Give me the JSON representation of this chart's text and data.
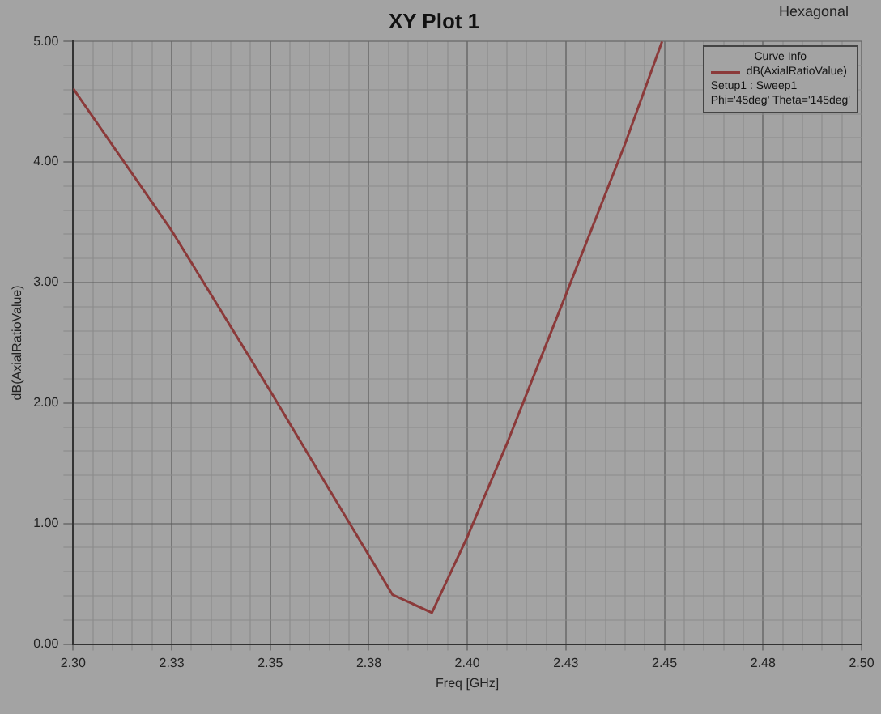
{
  "chart_data": {
    "type": "line",
    "title": "XY Plot 1",
    "xlabel": "Freq [GHz]",
    "ylabel": "dB(AxialRatioValue)",
    "legend_title": "Curve Info",
    "annotations": [
      "Hexagonal",
      "Setup1 : Sweep1",
      "Phi='45deg' Theta='145deg'"
    ],
    "x": [
      2.3,
      2.325,
      2.35,
      2.365,
      2.381,
      2.391,
      2.4,
      2.41,
      2.425,
      2.44,
      2.4494
    ],
    "series": [
      {
        "name": "dB(AxialRatioValue)",
        "color": "#8b3a3a",
        "values": [
          4.61,
          3.43,
          2.1,
          1.28,
          0.41,
          0.26,
          0.89,
          1.66,
          2.9,
          4.15,
          5.0
        ]
      }
    ],
    "xlim": [
      2.3,
      2.5
    ],
    "xticks": [
      {
        "value": 2.3,
        "label": "2.30"
      },
      {
        "value": 2.305,
        "label": null
      },
      {
        "value": 2.31,
        "label": null
      },
      {
        "value": 2.315,
        "label": null
      },
      {
        "value": 2.32,
        "label": null
      },
      {
        "value": 2.325,
        "label": "2.33"
      },
      {
        "value": 2.33,
        "label": null
      },
      {
        "value": 2.335,
        "label": null
      },
      {
        "value": 2.34,
        "label": null
      },
      {
        "value": 2.345,
        "label": null
      },
      {
        "value": 2.35,
        "label": "2.35"
      },
      {
        "value": 2.355,
        "label": null
      },
      {
        "value": 2.36,
        "label": null
      },
      {
        "value": 2.365,
        "label": null
      },
      {
        "value": 2.37,
        "label": null
      },
      {
        "value": 2.375,
        "label": "2.38"
      },
      {
        "value": 2.38,
        "label": null
      },
      {
        "value": 2.385,
        "label": null
      },
      {
        "value": 2.39,
        "label": null
      },
      {
        "value": 2.395,
        "label": null
      },
      {
        "value": 2.4,
        "label": "2.40"
      },
      {
        "value": 2.405,
        "label": null
      },
      {
        "value": 2.41,
        "label": null
      },
      {
        "value": 2.415,
        "label": null
      },
      {
        "value": 2.42,
        "label": null
      },
      {
        "value": 2.425,
        "label": "2.43"
      },
      {
        "value": 2.43,
        "label": null
      },
      {
        "value": 2.435,
        "label": null
      },
      {
        "value": 2.44,
        "label": null
      },
      {
        "value": 2.445,
        "label": null
      },
      {
        "value": 2.45,
        "label": "2.45"
      },
      {
        "value": 2.455,
        "label": null
      },
      {
        "value": 2.46,
        "label": null
      },
      {
        "value": 2.465,
        "label": null
      },
      {
        "value": 2.47,
        "label": null
      },
      {
        "value": 2.475,
        "label": "2.48"
      },
      {
        "value": 2.48,
        "label": null
      },
      {
        "value": 2.485,
        "label": null
      },
      {
        "value": 2.49,
        "label": null
      },
      {
        "value": 2.495,
        "label": null
      },
      {
        "value": 2.5,
        "label": "2.50"
      }
    ],
    "ylim": [
      0,
      5
    ],
    "yticks": [
      {
        "value": 0,
        "label": "0.00"
      },
      {
        "value": 0.2,
        "label": null
      },
      {
        "value": 0.4,
        "label": null
      },
      {
        "value": 0.6,
        "label": null
      },
      {
        "value": 0.8,
        "label": null
      },
      {
        "value": 1,
        "label": "1.00"
      },
      {
        "value": 1.2,
        "label": null
      },
      {
        "value": 1.4,
        "label": null
      },
      {
        "value": 1.6,
        "label": null
      },
      {
        "value": 1.8,
        "label": null
      },
      {
        "value": 2,
        "label": "2.00"
      },
      {
        "value": 2.2,
        "label": null
      },
      {
        "value": 2.4,
        "label": null
      },
      {
        "value": 2.6,
        "label": null
      },
      {
        "value": 2.8,
        "label": null
      },
      {
        "value": 3,
        "label": "3.00"
      },
      {
        "value": 3.2,
        "label": null
      },
      {
        "value": 3.4,
        "label": null
      },
      {
        "value": 3.6,
        "label": null
      },
      {
        "value": 3.8,
        "label": null
      },
      {
        "value": 4,
        "label": "4.00"
      },
      {
        "value": 4.2,
        "label": null
      },
      {
        "value": 4.4,
        "label": null
      },
      {
        "value": 4.6,
        "label": null
      },
      {
        "value": 4.8,
        "label": null
      },
      {
        "value": 5,
        "label": "5.00"
      }
    ],
    "grid": true,
    "legend": "top right",
    "marker": "none",
    "line_style": "solid"
  }
}
